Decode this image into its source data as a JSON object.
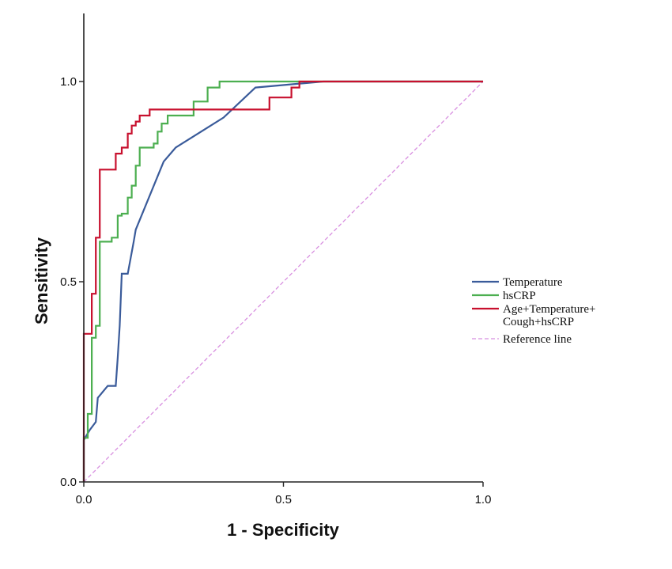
{
  "chart_data": {
    "type": "line",
    "title": "",
    "xlabel": "1 - Specificity",
    "ylabel": "Sensitivity",
    "xlim": [
      0,
      1.0
    ],
    "ylim": [
      0,
      1.15
    ],
    "xticks": [
      "0.0",
      "0.5",
      "1.0"
    ],
    "xtick_values": [
      0,
      0.5,
      1.0
    ],
    "yticks": [
      "0.0",
      "0.5",
      "1.0"
    ],
    "ytick_values": [
      0,
      0.5,
      1.0
    ],
    "grid": false,
    "legend_position": "right",
    "series": [
      {
        "name": "Temperature",
        "color": "#3a5b9a",
        "style": "solid",
        "points": [
          [
            0,
            0
          ],
          [
            0,
            0.105
          ],
          [
            0.015,
            0.13
          ],
          [
            0.03,
            0.15
          ],
          [
            0.035,
            0.21
          ],
          [
            0.06,
            0.24
          ],
          [
            0.08,
            0.24
          ],
          [
            0.085,
            0.31
          ],
          [
            0.09,
            0.39
          ],
          [
            0.095,
            0.52
          ],
          [
            0.11,
            0.52
          ],
          [
            0.125,
            0.6
          ],
          [
            0.13,
            0.63
          ],
          [
            0.2,
            0.8
          ],
          [
            0.23,
            0.835
          ],
          [
            0.35,
            0.91
          ],
          [
            0.43,
            0.985
          ],
          [
            0.6,
            1.0
          ],
          [
            1.0,
            1.0
          ]
        ]
      },
      {
        "name": "hsCRP",
        "color": "#4caf50",
        "style": "solid",
        "points": [
          [
            0,
            0
          ],
          [
            0,
            0.11
          ],
          [
            0.01,
            0.11
          ],
          [
            0.01,
            0.17
          ],
          [
            0.02,
            0.17
          ],
          [
            0.02,
            0.36
          ],
          [
            0.03,
            0.36
          ],
          [
            0.03,
            0.39
          ],
          [
            0.04,
            0.39
          ],
          [
            0.04,
            0.6
          ],
          [
            0.07,
            0.6
          ],
          [
            0.07,
            0.61
          ],
          [
            0.085,
            0.61
          ],
          [
            0.085,
            0.665
          ],
          [
            0.095,
            0.665
          ],
          [
            0.095,
            0.67
          ],
          [
            0.11,
            0.67
          ],
          [
            0.11,
            0.71
          ],
          [
            0.12,
            0.71
          ],
          [
            0.12,
            0.74
          ],
          [
            0.13,
            0.74
          ],
          [
            0.13,
            0.79
          ],
          [
            0.14,
            0.79
          ],
          [
            0.14,
            0.835
          ],
          [
            0.175,
            0.835
          ],
          [
            0.175,
            0.845
          ],
          [
            0.185,
            0.845
          ],
          [
            0.185,
            0.875
          ],
          [
            0.195,
            0.875
          ],
          [
            0.195,
            0.895
          ],
          [
            0.21,
            0.895
          ],
          [
            0.21,
            0.915
          ],
          [
            0.275,
            0.915
          ],
          [
            0.275,
            0.95
          ],
          [
            0.31,
            0.95
          ],
          [
            0.31,
            0.985
          ],
          [
            0.34,
            0.985
          ],
          [
            0.34,
            1.0
          ],
          [
            1.0,
            1.0
          ]
        ]
      },
      {
        "name": "Age+Temperature+\nCough+hsCRP",
        "color": "#c8102e",
        "style": "solid",
        "points": [
          [
            0,
            0
          ],
          [
            0,
            0.37
          ],
          [
            0.02,
            0.37
          ],
          [
            0.02,
            0.47
          ],
          [
            0.03,
            0.47
          ],
          [
            0.03,
            0.61
          ],
          [
            0.04,
            0.61
          ],
          [
            0.04,
            0.78
          ],
          [
            0.08,
            0.78
          ],
          [
            0.08,
            0.82
          ],
          [
            0.095,
            0.82
          ],
          [
            0.095,
            0.835
          ],
          [
            0.11,
            0.835
          ],
          [
            0.11,
            0.87
          ],
          [
            0.12,
            0.87
          ],
          [
            0.12,
            0.89
          ],
          [
            0.13,
            0.89
          ],
          [
            0.13,
            0.9
          ],
          [
            0.14,
            0.9
          ],
          [
            0.14,
            0.915
          ],
          [
            0.165,
            0.915
          ],
          [
            0.165,
            0.93
          ],
          [
            0.465,
            0.93
          ],
          [
            0.465,
            0.96
          ],
          [
            0.52,
            0.96
          ],
          [
            0.52,
            0.985
          ],
          [
            0.54,
            0.985
          ],
          [
            0.54,
            1.0
          ],
          [
            1.0,
            1.0
          ]
        ]
      },
      {
        "name": "Reference line",
        "color": "#d88fe0",
        "style": "dashed",
        "points": [
          [
            0,
            0
          ],
          [
            1.0,
            1.0
          ]
        ]
      }
    ]
  }
}
